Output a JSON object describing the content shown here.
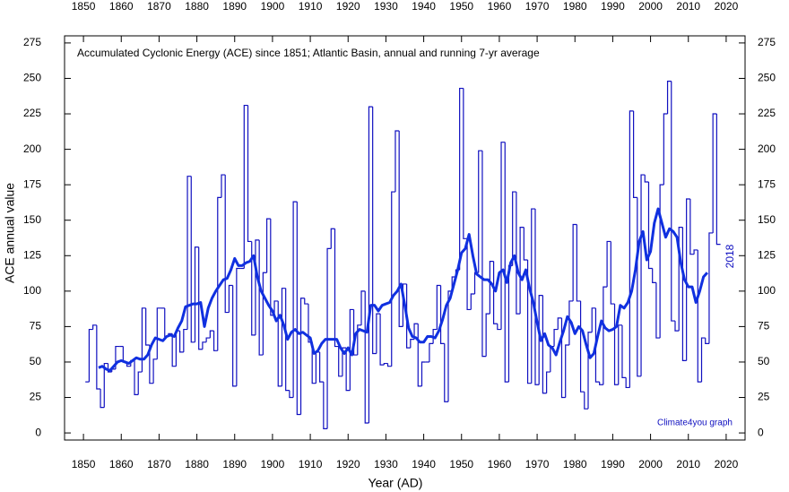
{
  "chart_data": {
    "type": "step-line",
    "title": "Accumulated Cyclonic Energy (ACE) since 1851; Atlantic Basin, annual and running 7-yr average",
    "xlabel": "Year (AD)",
    "ylabel": "ACE annual value",
    "annotations": [
      "2018",
      "Climate4you graph"
    ],
    "xlim": [
      1845,
      2025
    ],
    "ylim": [
      -5,
      280
    ],
    "xticks": [
      1850,
      1860,
      1870,
      1880,
      1890,
      1900,
      1910,
      1920,
      1930,
      1940,
      1950,
      1960,
      1970,
      1980,
      1990,
      2000,
      2010,
      2020
    ],
    "yticks": [
      0,
      25,
      50,
      75,
      100,
      125,
      150,
      175,
      200,
      225,
      250,
      275
    ],
    "series": [
      {
        "name": "annual",
        "color": "#1010c0",
        "style": "step",
        "x": [
          1851,
          1852,
          1853,
          1854,
          1855,
          1856,
          1857,
          1858,
          1859,
          1860,
          1861,
          1862,
          1863,
          1864,
          1865,
          1866,
          1867,
          1868,
          1869,
          1870,
          1871,
          1872,
          1873,
          1874,
          1875,
          1876,
          1877,
          1878,
          1879,
          1880,
          1881,
          1882,
          1883,
          1884,
          1885,
          1886,
          1887,
          1888,
          1889,
          1890,
          1891,
          1892,
          1893,
          1894,
          1895,
          1896,
          1897,
          1898,
          1899,
          1900,
          1901,
          1902,
          1903,
          1904,
          1905,
          1906,
          1907,
          1908,
          1909,
          1910,
          1911,
          1912,
          1913,
          1914,
          1915,
          1916,
          1917,
          1918,
          1919,
          1920,
          1921,
          1922,
          1923,
          1924,
          1925,
          1926,
          1927,
          1928,
          1929,
          1930,
          1931,
          1932,
          1933,
          1934,
          1935,
          1936,
          1937,
          1938,
          1939,
          1940,
          1941,
          1942,
          1943,
          1944,
          1945,
          1946,
          1947,
          1948,
          1949,
          1950,
          1951,
          1952,
          1953,
          1954,
          1955,
          1956,
          1957,
          1958,
          1959,
          1960,
          1961,
          1962,
          1963,
          1964,
          1965,
          1966,
          1967,
          1968,
          1969,
          1970,
          1971,
          1972,
          1973,
          1974,
          1975,
          1976,
          1977,
          1978,
          1979,
          1980,
          1981,
          1982,
          1983,
          1984,
          1985,
          1986,
          1987,
          1988,
          1989,
          1990,
          1991,
          1992,
          1993,
          1994,
          1995,
          1996,
          1997,
          1998,
          1999,
          2000,
          2001,
          2002,
          2003,
          2004,
          2005,
          2006,
          2007,
          2008,
          2009,
          2010,
          2011,
          2012,
          2013,
          2014,
          2015,
          2016,
          2017,
          2018
        ],
        "values": [
          36,
          73,
          76,
          31,
          18,
          49,
          43,
          45,
          61,
          61,
          50,
          47,
          51,
          27,
          43,
          88,
          62,
          35,
          52,
          88,
          88,
          68,
          70,
          47,
          72,
          57,
          73,
          181,
          64,
          131,
          59,
          64,
          67,
          72,
          58,
          166,
          182,
          85,
          104,
          33,
          116,
          116,
          231,
          135,
          69,
          136,
          55,
          113,
          151,
          83,
          93,
          33,
          102,
          30,
          25,
          163,
          13,
          95,
          91,
          64,
          35,
          57,
          36,
          3,
          130,
          144,
          61,
          40,
          60,
          30,
          87,
          55,
          76,
          100,
          7,
          230,
          56,
          84,
          48,
          49,
          47,
          170,
          213,
          75,
          105,
          60,
          66,
          77,
          33,
          50,
          50,
          63,
          73,
          104,
          63,
          22,
          100,
          110,
          115,
          243,
          137,
          87,
          98,
          113,
          199,
          54,
          84,
          121,
          77,
          73,
          205,
          36,
          118,
          170,
          84,
          145,
          122,
          35,
          158,
          34,
          97,
          28,
          43,
          61,
          73,
          81,
          25,
          62,
          93,
          147,
          93,
          29,
          17,
          71,
          88,
          36,
          34,
          103,
          135,
          91,
          34,
          76,
          39,
          32,
          227,
          166,
          40,
          182,
          177,
          116,
          106,
          67,
          175,
          225,
          248,
          79,
          72,
          145,
          51,
          165,
          126,
          129,
          36,
          67,
          63,
          141,
          225,
          133
        ]
      },
      {
        "name": "running 7-yr average",
        "color": "#1030e0",
        "style": "line",
        "x": [
          1854,
          1855,
          1856,
          1857,
          1858,
          1859,
          1860,
          1861,
          1862,
          1863,
          1864,
          1865,
          1866,
          1867,
          1868,
          1869,
          1870,
          1871,
          1872,
          1873,
          1874,
          1875,
          1876,
          1877,
          1878,
          1879,
          1880,
          1881,
          1882,
          1883,
          1884,
          1885,
          1886,
          1887,
          1888,
          1889,
          1890,
          1891,
          1892,
          1893,
          1894,
          1895,
          1896,
          1897,
          1898,
          1899,
          1900,
          1901,
          1902,
          1903,
          1904,
          1905,
          1906,
          1907,
          1908,
          1909,
          1910,
          1911,
          1912,
          1913,
          1914,
          1915,
          1916,
          1917,
          1918,
          1919,
          1920,
          1921,
          1922,
          1923,
          1924,
          1925,
          1926,
          1927,
          1928,
          1929,
          1930,
          1931,
          1932,
          1933,
          1934,
          1935,
          1936,
          1937,
          1938,
          1939,
          1940,
          1941,
          1942,
          1943,
          1944,
          1945,
          1946,
          1947,
          1948,
          1949,
          1950,
          1951,
          1952,
          1953,
          1954,
          1955,
          1956,
          1957,
          1958,
          1959,
          1960,
          1961,
          1962,
          1963,
          1964,
          1965,
          1966,
          1967,
          1968,
          1969,
          1970,
          1971,
          1972,
          1973,
          1974,
          1975,
          1976,
          1977,
          1978,
          1979,
          1980,
          1981,
          1982,
          1983,
          1984,
          1985,
          1986,
          1987,
          1988,
          1989,
          1990,
          1991,
          1992,
          1993,
          1994,
          1995,
          1996,
          1997,
          1998,
          1999,
          2000,
          2001,
          2002,
          2003,
          2004,
          2005,
          2006,
          2007,
          2008,
          2009,
          2010,
          2011,
          2012,
          2013,
          2014,
          2015
        ],
        "values": [
          46,
          47,
          45,
          44,
          47,
          50,
          51,
          50,
          49,
          51,
          53,
          52,
          52,
          55,
          62,
          67,
          66,
          65,
          68,
          69,
          68,
          74,
          79,
          89,
          90,
          91,
          91,
          92,
          75,
          88,
          95,
          100,
          104,
          108,
          109,
          115,
          123,
          118,
          118,
          120,
          121,
          125,
          110,
          100,
          95,
          90,
          86,
          79,
          83,
          76,
          66,
          71,
          73,
          70,
          71,
          69,
          67,
          56,
          58,
          63,
          66,
          66,
          66,
          66,
          60,
          56,
          60,
          55,
          70,
          73,
          72,
          71,
          90,
          90,
          86,
          90,
          91,
          92,
          97,
          100,
          105,
          90,
          74,
          68,
          67,
          64,
          64,
          68,
          68,
          67,
          72,
          80,
          90,
          95,
          105,
          115,
          127,
          130,
          140,
          125,
          112,
          110,
          108,
          108,
          105,
          100,
          113,
          115,
          106,
          120,
          125,
          113,
          108,
          115,
          102,
          92,
          78,
          65,
          70,
          62,
          60,
          55,
          64,
          72,
          82,
          78,
          70,
          75,
          72,
          62,
          53,
          56,
          68,
          79,
          74,
          72,
          73,
          75,
          90,
          88,
          92,
          100,
          115,
          135,
          142,
          122,
          128,
          148,
          158,
          148,
          138,
          144,
          142,
          138,
          120,
          108,
          103,
          103,
          92,
          100,
          110,
          113
        ]
      }
    ]
  }
}
